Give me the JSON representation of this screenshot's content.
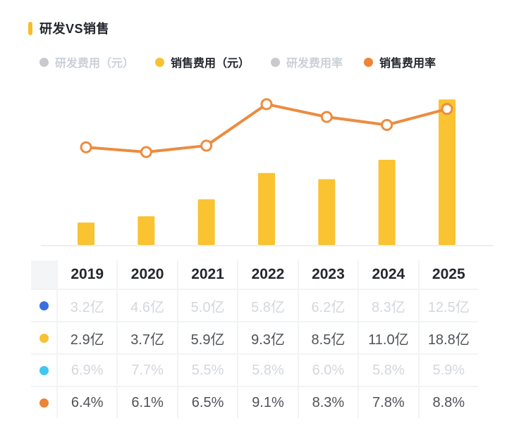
{
  "page": {
    "title": "研发VS销售"
  },
  "legend": [
    {
      "label": "研发费用（元）",
      "color": "#C8CACD",
      "enabled": false
    },
    {
      "label": "销售费用（元）",
      "color": "#F7C231",
      "enabled": true
    },
    {
      "label": "研发费用率",
      "color": "#C8CACD",
      "enabled": false
    },
    {
      "label": "销售费用率",
      "color": "#EE8434",
      "enabled": true
    }
  ],
  "chart_data": {
    "type": "bar+line",
    "title": "研发VS销售",
    "categories": [
      "2019",
      "2020",
      "2021",
      "2022",
      "2023",
      "2024",
      "2025"
    ],
    "series": [
      {
        "name": "研发费用（元）",
        "type": "bar",
        "unit": "亿",
        "visible": false,
        "color": "#3A6FE0",
        "values": [
          3.2,
          4.6,
          5.0,
          5.8,
          6.2,
          8.3,
          12.5
        ]
      },
      {
        "name": "销售费用（元）",
        "type": "bar",
        "unit": "亿",
        "visible": true,
        "color": "#F9C331",
        "values": [
          2.9,
          3.7,
          5.9,
          9.3,
          8.5,
          11.0,
          18.8
        ]
      },
      {
        "name": "研发费用率",
        "type": "line",
        "unit": "%",
        "visible": false,
        "color": "#3FC7F2",
        "values": [
          6.9,
          7.7,
          5.5,
          5.8,
          6.0,
          5.8,
          5.9
        ]
      },
      {
        "name": "销售费用率",
        "type": "line",
        "unit": "%",
        "visible": true,
        "color": "#EC8C40",
        "values": [
          6.4,
          6.1,
          6.5,
          9.1,
          8.3,
          7.8,
          8.8
        ]
      }
    ],
    "legend_position": "top",
    "grid": false,
    "axes_labels_shown": false
  },
  "table": {
    "header": [
      "2019",
      "2020",
      "2021",
      "2022",
      "2023",
      "2024",
      "2025"
    ],
    "rows": [
      {
        "dot": "#3A6FE0",
        "disabled": true,
        "cells": [
          "3.2亿",
          "4.6亿",
          "5.0亿",
          "5.8亿",
          "6.2亿",
          "8.3亿",
          "12.5亿"
        ]
      },
      {
        "dot": "#F7C231",
        "disabled": false,
        "cells": [
          "2.9亿",
          "3.7亿",
          "5.9亿",
          "9.3亿",
          "8.5亿",
          "11.0亿",
          "18.8亿"
        ]
      },
      {
        "dot": "#3FC7F2",
        "disabled": true,
        "cells": [
          "6.9%",
          "7.7%",
          "5.5%",
          "5.8%",
          "6.0%",
          "5.8%",
          "5.9%"
        ]
      },
      {
        "dot": "#EC8434",
        "disabled": false,
        "cells": [
          "6.4%",
          "6.1%",
          "6.5%",
          "9.1%",
          "8.3%",
          "7.8%",
          "8.8%"
        ]
      }
    ]
  }
}
